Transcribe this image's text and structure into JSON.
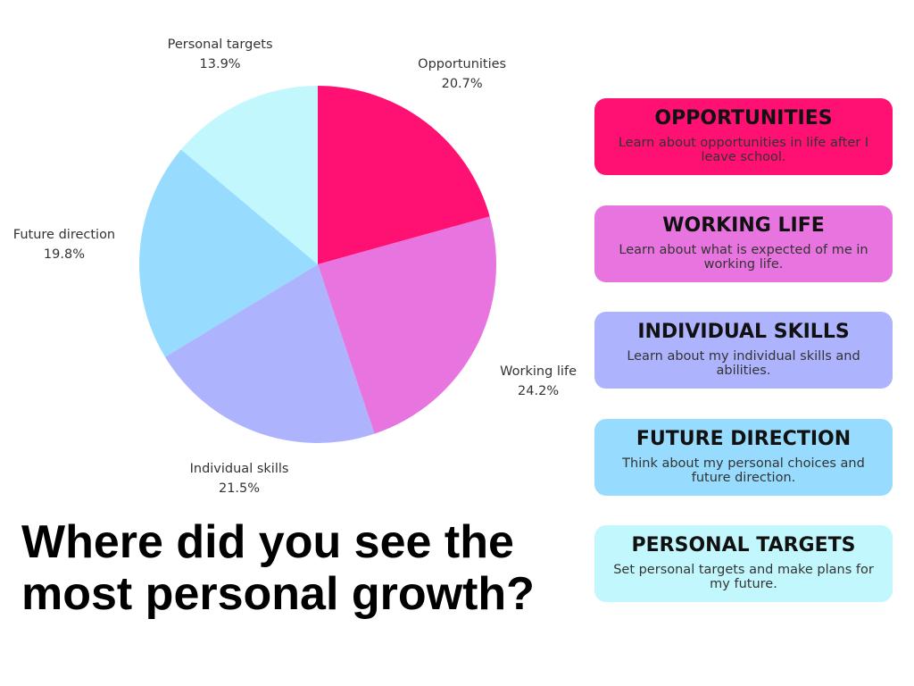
{
  "chart_data": {
    "type": "pie",
    "title": "Where did you see the most personal growth?",
    "categories": [
      "Opportunities",
      "Working life",
      "Individual skills",
      "Future direction",
      "Personal targets"
    ],
    "values": [
      20.7,
      24.2,
      21.5,
      19.8,
      13.9
    ],
    "value_labels": [
      "20.7%",
      "24.2%",
      "21.5%",
      "19.8%",
      "13.9%"
    ],
    "colors": [
      "#ff1173",
      "#e874df",
      "#aeb3fe",
      "#97dcfe",
      "#c2f8fd"
    ]
  },
  "cards": [
    {
      "title": "OPPORTUNITIES",
      "text": "Learn about opportunities in life after I leave school."
    },
    {
      "title": "WORKING LIFE",
      "text": "Learn about what is expected of me in working life."
    },
    {
      "title": "INDIVIDUAL SKILLS",
      "text": "Learn about my individual skills and abilities."
    },
    {
      "title": "FUTURE DIRECTION",
      "text": "Think about my personal choices and future direction."
    },
    {
      "title": "PERSONAL TARGETS",
      "text": "Set personal targets and make plans for my future."
    }
  ]
}
